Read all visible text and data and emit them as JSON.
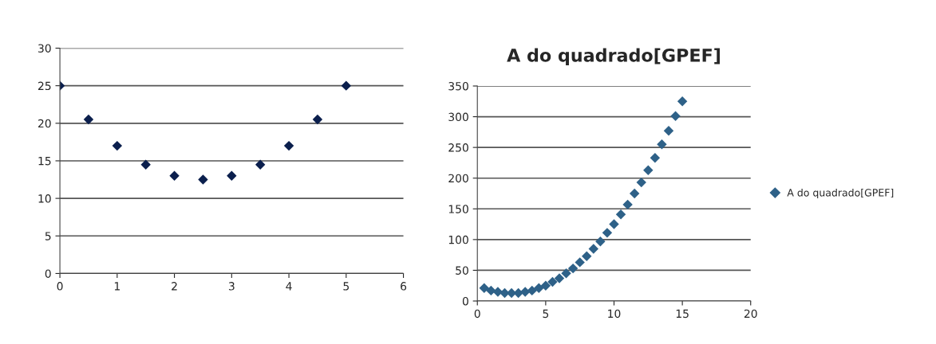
{
  "chart_data": [
    {
      "type": "scatter",
      "x": [
        0,
        0.5,
        1,
        1.5,
        2,
        2.5,
        3,
        3.5,
        4,
        4.5,
        5
      ],
      "series": [
        {
          "color": "#0b1f4d",
          "values": [
            25,
            20.5,
            17,
            14.5,
            13,
            12.5,
            13,
            14.5,
            17,
            20.5,
            25
          ]
        }
      ],
      "xlim": [
        0,
        6
      ],
      "xticks": [
        0,
        1,
        2,
        3,
        4,
        5,
        6
      ],
      "ylim": [
        0,
        30
      ],
      "yticks": [
        0,
        5,
        10,
        15,
        20,
        25,
        30
      ],
      "grid": "y",
      "marker": "diamond"
    },
    {
      "type": "scatter",
      "title": "A do quadrado[GPEF]",
      "x": [
        0.5,
        1,
        1.5,
        2,
        2.5,
        3,
        3.5,
        4,
        4.5,
        5,
        5.5,
        6,
        6.5,
        7,
        7.5,
        8,
        8.5,
        9,
        9.5,
        10,
        10.5,
        11,
        11.5,
        12,
        12.5,
        13,
        13.5,
        14,
        14.5,
        15
      ],
      "series": [
        {
          "name": "A do quadrado[GPEF]",
          "color": "#2e6188",
          "values": [
            21,
            17,
            15,
            13,
            13,
            13,
            15,
            17,
            21,
            25,
            31,
            37,
            45,
            53,
            63,
            73,
            85,
            97,
            111,
            125,
            141,
            157,
            175,
            193,
            213,
            233,
            255,
            277,
            301,
            325
          ]
        }
      ],
      "xlim": [
        0,
        20
      ],
      "xticks": [
        0,
        5,
        10,
        15,
        20
      ],
      "ylim": [
        0,
        350
      ],
      "yticks": [
        0,
        50,
        100,
        150,
        200,
        250,
        300,
        350
      ],
      "grid": "y",
      "marker": "diamond",
      "legend": "right"
    }
  ]
}
